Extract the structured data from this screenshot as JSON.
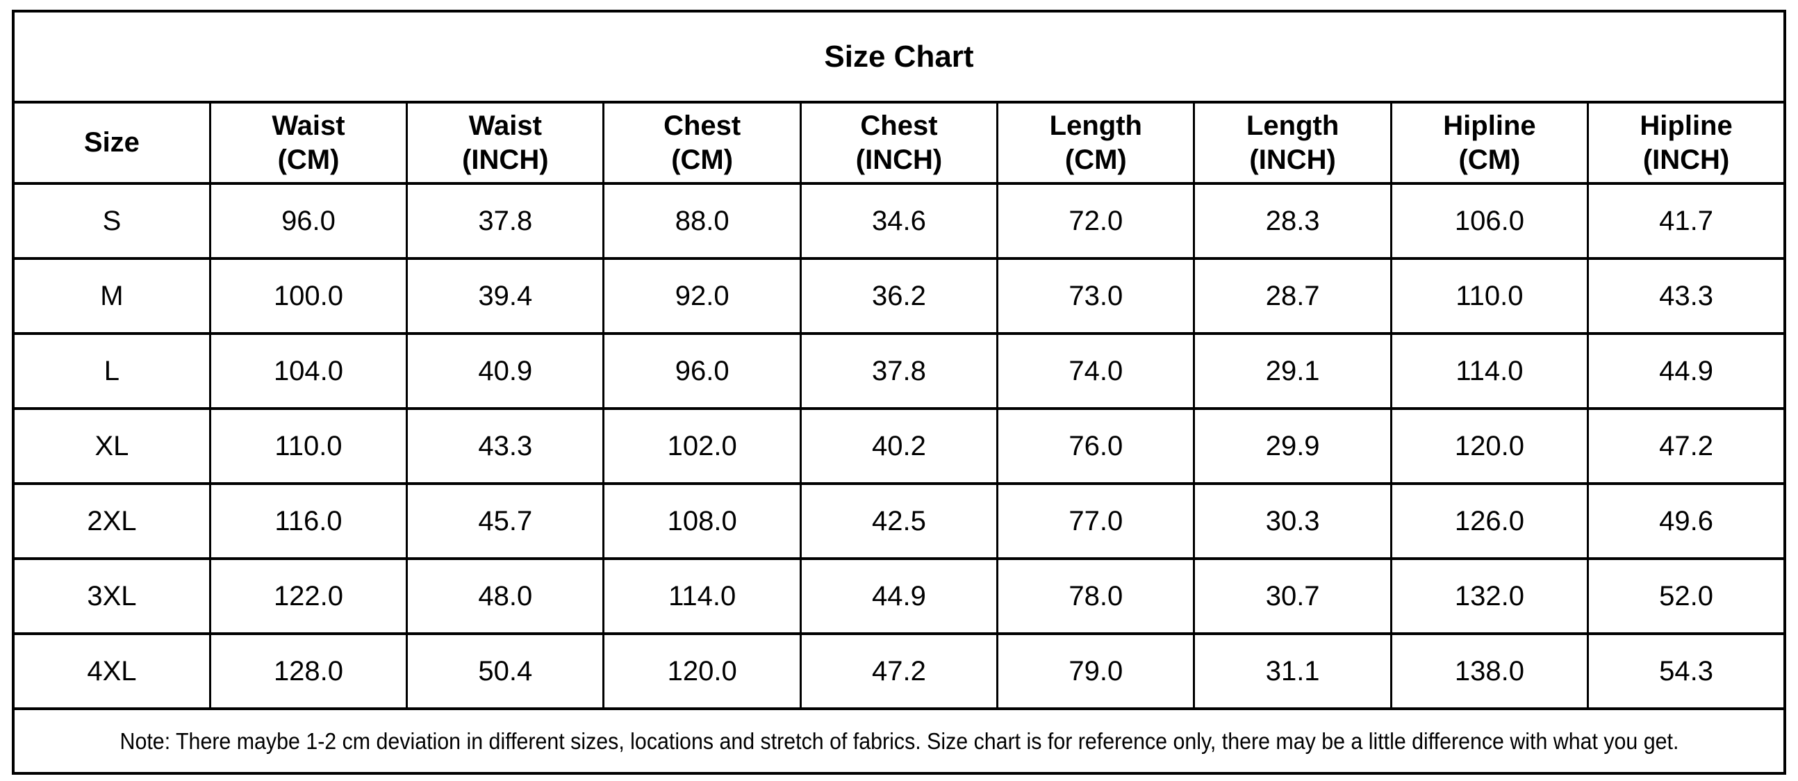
{
  "title": "Size Chart",
  "colors": {
    "background": "#ffffff",
    "border": "#000000",
    "text": "#000000"
  },
  "columns": [
    {
      "label": "Size",
      "unit": ""
    },
    {
      "label": "Waist",
      "unit": "(CM)"
    },
    {
      "label": "Waist",
      "unit": "(INCH)"
    },
    {
      "label": "Chest",
      "unit": "(CM)"
    },
    {
      "label": "Chest",
      "unit": "(INCH)"
    },
    {
      "label": "Length",
      "unit": "(CM)"
    },
    {
      "label": "Length",
      "unit": "(INCH)"
    },
    {
      "label": "Hipline",
      "unit": "(CM)"
    },
    {
      "label": "Hipline",
      "unit": "(INCH)"
    }
  ],
  "rows": [
    {
      "size": "S",
      "values": [
        "96.0",
        "37.8",
        "88.0",
        "34.6",
        "72.0",
        "28.3",
        "106.0",
        "41.7"
      ]
    },
    {
      "size": "M",
      "values": [
        "100.0",
        "39.4",
        "92.0",
        "36.2",
        "73.0",
        "28.7",
        "110.0",
        "43.3"
      ]
    },
    {
      "size": "L",
      "values": [
        "104.0",
        "40.9",
        "96.0",
        "37.8",
        "74.0",
        "29.1",
        "114.0",
        "44.9"
      ]
    },
    {
      "size": "XL",
      "values": [
        "110.0",
        "43.3",
        "102.0",
        "40.2",
        "76.0",
        "29.9",
        "120.0",
        "47.2"
      ]
    },
    {
      "size": "2XL",
      "values": [
        "116.0",
        "45.7",
        "108.0",
        "42.5",
        "77.0",
        "30.3",
        "126.0",
        "49.6"
      ]
    },
    {
      "size": "3XL",
      "values": [
        "122.0",
        "48.0",
        "114.0",
        "44.9",
        "78.0",
        "30.7",
        "132.0",
        "52.0"
      ]
    },
    {
      "size": "4XL",
      "values": [
        "128.0",
        "50.4",
        "120.0",
        "47.2",
        "79.0",
        "31.1",
        "138.0",
        "54.3"
      ]
    }
  ],
  "note": "Note: There maybe 1-2 cm deviation in different sizes, locations and stretch of fabrics. Size chart is for reference only, there may be a little difference with what you get."
}
